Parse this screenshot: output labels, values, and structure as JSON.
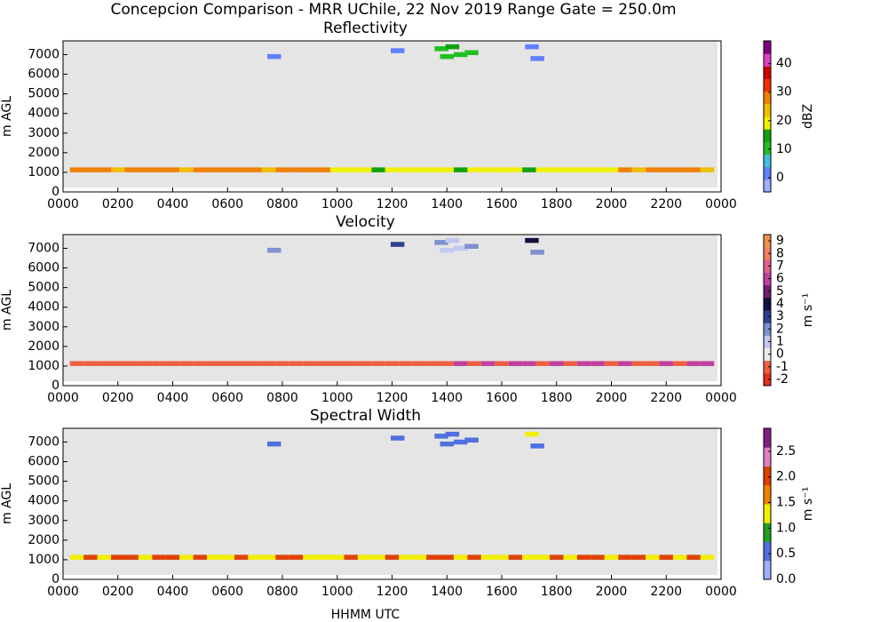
{
  "title": "Concepcion Comparison - MRR UChile, 22 Nov 2019 Range Gate = 250.0m",
  "chart_data": [
    {
      "type": "heatmap",
      "title": "Reflectivity",
      "ylabel": "m AGL",
      "colorbar_label": "dBZ",
      "x": [
        0.5,
        1,
        1.5,
        2,
        2.5,
        3,
        3.5,
        4,
        4.5,
        5,
        5.5,
        6,
        6.5,
        7,
        7.5,
        8,
        8.5,
        9,
        9.5,
        10,
        10.5,
        11,
        11.5,
        12,
        12.5,
        13,
        13.5,
        14,
        14.5,
        15,
        15.5,
        16,
        16.5,
        17,
        17.5,
        18,
        18.5,
        19,
        19.5,
        20,
        20.5,
        21,
        21.5,
        22,
        22.5,
        23,
        23.5,
        7.7,
        12.2,
        13.8,
        14.0,
        14.2,
        14.5,
        14.9,
        17.1,
        17.3
      ],
      "y": [
        1125,
        1125,
        1125,
        1125,
        1125,
        1125,
        1125,
        1125,
        1125,
        1125,
        1125,
        1125,
        1125,
        1125,
        1125,
        1125,
        1125,
        1125,
        1125,
        1125,
        1125,
        1125,
        1125,
        1125,
        1125,
        1125,
        1125,
        1125,
        1125,
        1125,
        1125,
        1125,
        1125,
        1125,
        1125,
        1125,
        1125,
        1125,
        1125,
        1125,
        1125,
        1125,
        1125,
        1125,
        1125,
        1125,
        1125,
        6900,
        7200,
        7300,
        6900,
        7400,
        7000,
        7100,
        7400,
        6800
      ],
      "values": [
        26,
        27,
        26,
        25,
        26,
        26,
        27,
        26,
        25,
        26,
        26,
        28,
        27,
        26,
        25,
        26,
        26,
        27,
        26,
        18,
        19,
        18,
        17,
        18,
        18,
        19,
        18,
        18,
        17,
        18,
        19,
        18,
        18,
        17,
        18,
        20,
        19,
        20,
        21,
        20,
        26,
        25,
        27,
        26,
        28,
        26,
        25,
        2,
        3,
        12,
        10,
        13,
        9,
        11,
        1,
        3
      ],
      "xlim": [
        0,
        24
      ],
      "ylim": [
        0,
        7700
      ],
      "xticks": [
        {
          "value": 0,
          "label": "0000"
        },
        {
          "value": 2,
          "label": "0200"
        },
        {
          "value": 4,
          "label": "0400"
        },
        {
          "value": 6,
          "label": "0600"
        },
        {
          "value": 8,
          "label": "0800"
        },
        {
          "value": 10,
          "label": "1000"
        },
        {
          "value": 12,
          "label": "1200"
        },
        {
          "value": 14,
          "label": "1400"
        },
        {
          "value": 16,
          "label": "1600"
        },
        {
          "value": 18,
          "label": "1800"
        },
        {
          "value": 20,
          "label": "2000"
        },
        {
          "value": 22,
          "label": "2200"
        },
        {
          "value": 24,
          "label": "0000"
        }
      ],
      "yticks": [
        0,
        1000,
        2000,
        3000,
        4000,
        5000,
        6000,
        7000
      ],
      "clim": [
        -5,
        48
      ],
      "cticks": [
        0,
        10,
        20,
        30,
        40
      ],
      "colormap": [
        "#a0b0ff",
        "#6080ff",
        "#40c0e0",
        "#20c020",
        "#10a010",
        "#f0f000",
        "#f0c000",
        "#f08000",
        "#f03000",
        "#d00000",
        "#e040c0",
        "#800080"
      ],
      "background": "#e5e5e5"
    },
    {
      "type": "heatmap",
      "title": "Velocity",
      "ylabel": "m AGL",
      "colorbar_label": "m s⁻¹",
      "x": [
        0.5,
        1,
        1.5,
        2,
        2.5,
        3,
        3.5,
        4,
        4.5,
        5,
        5.5,
        6,
        6.5,
        7,
        7.5,
        8,
        8.5,
        9,
        9.5,
        10,
        10.5,
        11,
        11.5,
        12,
        12.5,
        13,
        13.5,
        14,
        14.5,
        15,
        15.5,
        16,
        16.5,
        17,
        17.5,
        18,
        18.5,
        19,
        19.5,
        20,
        20.5,
        21,
        21.5,
        22,
        22.5,
        23,
        23.5,
        7.7,
        12.2,
        13.8,
        14.0,
        14.2,
        14.5,
        14.9,
        17.1,
        17.3
      ],
      "y": [
        1125,
        1125,
        1125,
        1125,
        1125,
        1125,
        1125,
        1125,
        1125,
        1125,
        1125,
        1125,
        1125,
        1125,
        1125,
        1125,
        1125,
        1125,
        1125,
        1125,
        1125,
        1125,
        1125,
        1125,
        1125,
        1125,
        1125,
        1125,
        1125,
        1125,
        1125,
        1125,
        1125,
        1125,
        1125,
        1125,
        1125,
        1125,
        1125,
        1125,
        1125,
        1125,
        1125,
        1125,
        1125,
        1125,
        1125,
        6900,
        7200,
        7300,
        6900,
        7400,
        7000,
        7100,
        7400,
        6800
      ],
      "values": [
        -1,
        -1,
        -1,
        -1,
        -1,
        -1,
        -1,
        -1,
        -1,
        -1,
        -1,
        -1,
        -1,
        -1,
        -1,
        -1,
        -1,
        -1,
        -1,
        -1,
        -1,
        -1,
        -1,
        -1,
        -1,
        -1,
        -1,
        -1,
        5.5,
        -1,
        5.5,
        -1,
        5.5,
        5.5,
        -1,
        5.5,
        -1,
        5.5,
        5.5,
        -1,
        5.5,
        -1,
        -1,
        5.5,
        -1,
        5.5,
        5.5,
        2,
        3,
        1.5,
        1,
        0.5,
        1,
        1.5,
        3.5,
        2
      ],
      "xlim": [
        0,
        24
      ],
      "ylim": [
        0,
        7700
      ],
      "xticks": [
        {
          "value": 0,
          "label": "0000"
        },
        {
          "value": 2,
          "label": "0200"
        },
        {
          "value": 4,
          "label": "0400"
        },
        {
          "value": 6,
          "label": "0600"
        },
        {
          "value": 8,
          "label": "0800"
        },
        {
          "value": 10,
          "label": "1000"
        },
        {
          "value": 12,
          "label": "1200"
        },
        {
          "value": 14,
          "label": "1400"
        },
        {
          "value": 16,
          "label": "1600"
        },
        {
          "value": 18,
          "label": "1800"
        },
        {
          "value": 20,
          "label": "2000"
        },
        {
          "value": 22,
          "label": "2200"
        },
        {
          "value": 24,
          "label": "0000"
        }
      ],
      "yticks": [
        0,
        1000,
        2000,
        3000,
        4000,
        5000,
        6000,
        7000
      ],
      "clim": [
        -2.5,
        9.5
      ],
      "cticks": [
        -2,
        -1,
        0,
        1,
        2,
        3,
        4,
        5,
        6,
        7,
        8,
        9
      ],
      "colormap": [
        "#e03020",
        "#f06040",
        "#f0e8e8",
        "#c0c8f0",
        "#8090d0",
        "#304090",
        "#101040",
        "#702070",
        "#c040a0",
        "#e06090",
        "#f08060",
        "#f09050"
      ],
      "background": "#e5e5e5"
    },
    {
      "type": "heatmap",
      "title": "Spectral Width",
      "ylabel": "m AGL",
      "colorbar_label": "m s⁻¹",
      "xlabel": "HHMM UTC",
      "x": [
        0.5,
        1,
        1.5,
        2,
        2.5,
        3,
        3.5,
        4,
        4.5,
        5,
        5.5,
        6,
        6.5,
        7,
        7.5,
        8,
        8.5,
        9,
        9.5,
        10,
        10.5,
        11,
        11.5,
        12,
        12.5,
        13,
        13.5,
        14,
        14.5,
        15,
        15.5,
        16,
        16.5,
        17,
        17.5,
        18,
        18.5,
        19,
        19.5,
        20,
        20.5,
        21,
        21.5,
        22,
        22.5,
        23,
        23.5,
        7.7,
        12.2,
        13.8,
        14.0,
        14.2,
        14.5,
        14.9,
        17.1,
        17.3
      ],
      "y": [
        1125,
        1125,
        1125,
        1125,
        1125,
        1125,
        1125,
        1125,
        1125,
        1125,
        1125,
        1125,
        1125,
        1125,
        1125,
        1125,
        1125,
        1125,
        1125,
        1125,
        1125,
        1125,
        1125,
        1125,
        1125,
        1125,
        1125,
        1125,
        1125,
        1125,
        1125,
        1125,
        1125,
        1125,
        1125,
        1125,
        1125,
        1125,
        1125,
        1125,
        1125,
        1125,
        1125,
        1125,
        1125,
        1125,
        1125,
        6900,
        7200,
        7300,
        6900,
        7400,
        7000,
        7100,
        7400,
        6800
      ],
      "values": [
        1.4,
        1.9,
        1.4,
        1.9,
        1.9,
        1.4,
        1.9,
        1.9,
        1.4,
        1.9,
        1.4,
        1.4,
        1.9,
        1.4,
        1.4,
        1.9,
        1.9,
        1.4,
        1.4,
        1.4,
        1.9,
        1.4,
        1.4,
        1.9,
        1.4,
        1.4,
        1.9,
        1.9,
        1.4,
        1.9,
        1.4,
        1.4,
        1.9,
        1.4,
        1.4,
        1.9,
        1.4,
        1.9,
        1.9,
        1.4,
        1.9,
        1.9,
        1.4,
        1.9,
        1.4,
        1.9,
        1.4,
        0.4,
        0.4,
        0.4,
        0.4,
        0.4,
        0.4,
        0.4,
        1.2,
        0.4
      ],
      "xlim": [
        0,
        24
      ],
      "ylim": [
        0,
        7700
      ],
      "xticks": [
        {
          "value": 0,
          "label": "0000"
        },
        {
          "value": 2,
          "label": "0200"
        },
        {
          "value": 4,
          "label": "0400"
        },
        {
          "value": 6,
          "label": "0600"
        },
        {
          "value": 8,
          "label": "0800"
        },
        {
          "value": 10,
          "label": "1000"
        },
        {
          "value": 12,
          "label": "1200"
        },
        {
          "value": 14,
          "label": "1400"
        },
        {
          "value": 16,
          "label": "1600"
        },
        {
          "value": 18,
          "label": "1800"
        },
        {
          "value": 20,
          "label": "2000"
        },
        {
          "value": 22,
          "label": "2200"
        },
        {
          "value": 24,
          "label": "0000"
        }
      ],
      "yticks": [
        0,
        1000,
        2000,
        3000,
        4000,
        5000,
        6000,
        7000
      ],
      "clim": [
        0,
        2.95
      ],
      "cticks": [
        {
          "value": 0,
          "label": "0.0"
        },
        0.5,
        {
          "value": 1,
          "label": "1.0"
        },
        1.5,
        {
          "value": 2,
          "label": "2.0"
        },
        2.5
      ],
      "colormap": [
        "#a0b0ff",
        "#5070e0",
        "#20a020",
        "#f0f000",
        "#f08000",
        "#e04000",
        "#e080c0",
        "#802080"
      ],
      "background": "#e5e5e5"
    }
  ]
}
